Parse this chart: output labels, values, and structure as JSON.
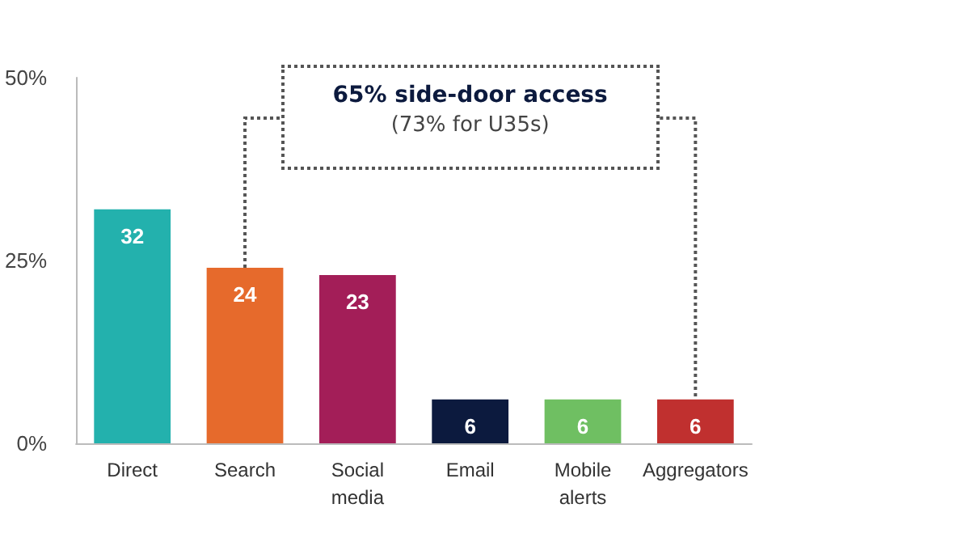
{
  "chart_data": {
    "type": "bar",
    "categories": [
      "Direct",
      "Search",
      "Social\nmedia",
      "Email",
      "Mobile\nalerts",
      "Aggregators"
    ],
    "values": [
      32,
      24,
      23,
      6,
      6,
      6
    ],
    "colors": [
      "#23b1ad",
      "#e66a2c",
      "#a31e58",
      "#0c1a3e",
      "#6fbf62",
      "#c0302f"
    ],
    "ylim": [
      0,
      50
    ],
    "yticks": [
      {
        "value": 0,
        "label": "0%"
      },
      {
        "value": 25,
        "label": "25%"
      },
      {
        "value": 50,
        "label": "50%"
      }
    ],
    "data_labels": true,
    "grid": false,
    "annotations": [
      "65% side-door access",
      "(73% for U35s)"
    ]
  }
}
